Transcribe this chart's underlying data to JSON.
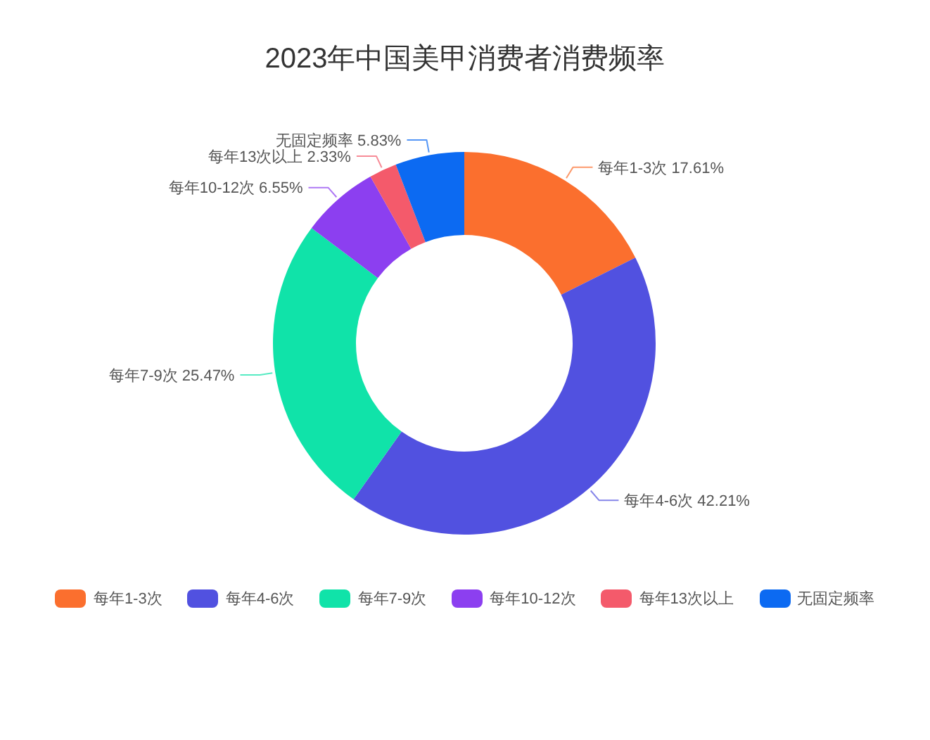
{
  "chart_data": {
    "type": "donut",
    "title": "2023年中国美甲消费者消费频率",
    "categories": [
      "每年1-3次",
      "每年4-6次",
      "每年7-9次",
      "每年10-12次",
      "每年13次以上",
      "无固定频率"
    ],
    "values": [
      17.61,
      42.21,
      25.47,
      6.55,
      2.33,
      5.83
    ],
    "value_labels": [
      "17.61%",
      "42.21%",
      "25.47%",
      "6.55%",
      "2.33%",
      "5.83%"
    ],
    "colors": [
      "#fb6f2e",
      "#5151e0",
      "#10e3a9",
      "#8c3ff0",
      "#f45a6b",
      "#0c6af2"
    ],
    "legend": "bottom"
  }
}
